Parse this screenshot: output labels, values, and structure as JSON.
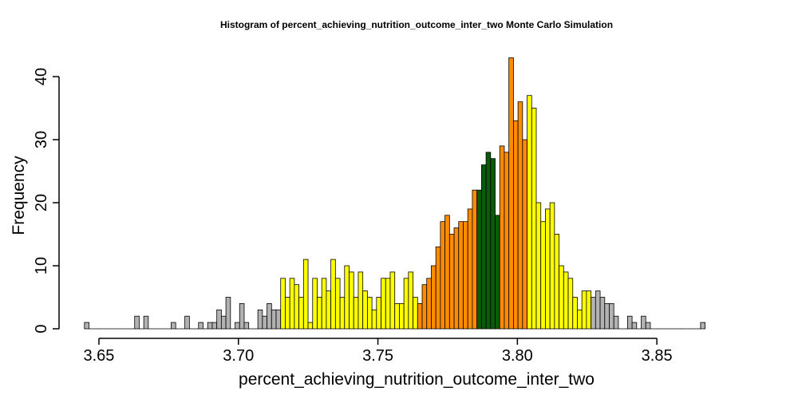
{
  "chart_data": {
    "type": "bar",
    "title": "Histogram of  percent_achieving_nutrition_outcome_inter_two  Monte Carlo Simulation",
    "xlabel": "percent_achieving_nutrition_outcome_inter_two",
    "ylabel": "Frequency",
    "xlim": [
      3.645,
      3.883
    ],
    "ylim": [
      0,
      43
    ],
    "x_ticks": [
      "3.65",
      "3.70",
      "3.75",
      "3.80",
      "3.85"
    ],
    "y_ticks": [
      "0",
      "10",
      "20",
      "30",
      "40"
    ],
    "grid": false,
    "legend": "none",
    "colors": {
      "tail": "#b2b2b2",
      "mid": "#ffff00",
      "inner": "#ff8c00",
      "center": "#0a5c0a",
      "outline": "#000000"
    },
    "bin_start": 3.6448,
    "bin_width": 0.001636,
    "counts": [
      1,
      0,
      0,
      0,
      0,
      0,
      0,
      0,
      0,
      0,
      0,
      2,
      0,
      2,
      0,
      0,
      0,
      0,
      0,
      1,
      0,
      0,
      2,
      0,
      0,
      1,
      0,
      1,
      1,
      3,
      2,
      5,
      0,
      1,
      4,
      1,
      0,
      0,
      3,
      2,
      4,
      3,
      3,
      8,
      5,
      8,
      7,
      5,
      11,
      1,
      8,
      5,
      8,
      6,
      11,
      8,
      5,
      10,
      9,
      5,
      9,
      6,
      5,
      3,
      5,
      8,
      8,
      9,
      4,
      4,
      8,
      9,
      5,
      4,
      7,
      8,
      10,
      13,
      17,
      18,
      15,
      16,
      17,
      17,
      19,
      22,
      22,
      26,
      28,
      27,
      18,
      29,
      28,
      43,
      33,
      36,
      30,
      37,
      35,
      20,
      17,
      19,
      20,
      15,
      10,
      9,
      8,
      5,
      3,
      6,
      6,
      5,
      6,
      5,
      4,
      4,
      2,
      0,
      0,
      2,
      1,
      0,
      2,
      1,
      0,
      0,
      0,
      0,
      0,
      0,
      0,
      0,
      0,
      0,
      0,
      1
    ],
    "bands": [
      {
        "name": "tail",
        "from_bin": 0,
        "to_bin": 42
      },
      {
        "name": "mid",
        "from_bin": 43,
        "to_bin": 72
      },
      {
        "name": "inner",
        "from_bin": 73,
        "to_bin": 85
      },
      {
        "name": "center",
        "from_bin": 86,
        "to_bin": 90
      },
      {
        "name": "inner",
        "from_bin": 91,
        "to_bin": 96
      },
      {
        "name": "mid",
        "from_bin": 97,
        "to_bin": 110
      },
      {
        "name": "tail",
        "from_bin": 111,
        "to_bin": 137
      }
    ]
  }
}
